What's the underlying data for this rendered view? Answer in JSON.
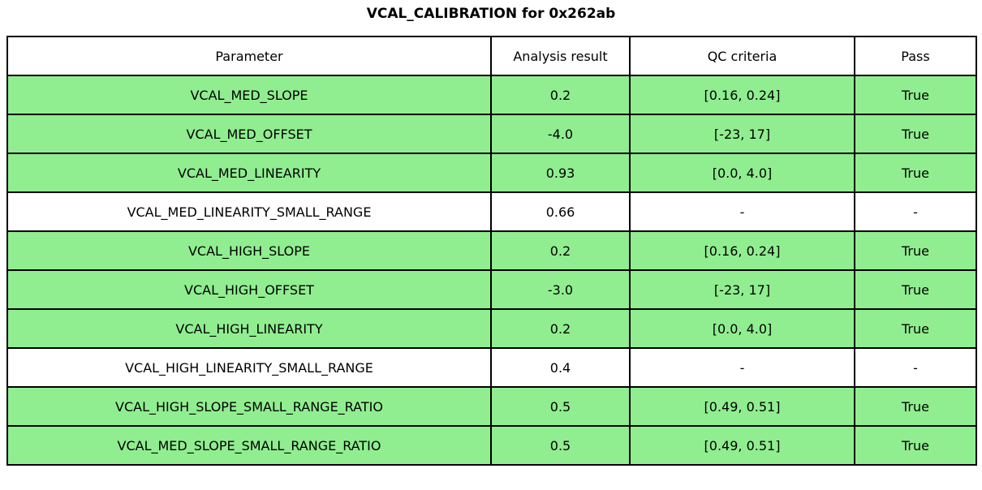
{
  "title": "VCAL_CALIBRATION for 0x262ab",
  "colors": {
    "row_pass_bg": "#90EE90",
    "row_neutral_bg": "#FFFFFF",
    "border": "#000000",
    "text": "#000000"
  },
  "table": {
    "headers": [
      "Parameter",
      "Analysis result",
      "QC criteria",
      "Pass"
    ],
    "rows": [
      {
        "parameter": "VCAL_MED_SLOPE",
        "result": "0.2",
        "criteria": "[0.16, 0.24]",
        "pass": "True",
        "highlight": true
      },
      {
        "parameter": "VCAL_MED_OFFSET",
        "result": "-4.0",
        "criteria": "[-23, 17]",
        "pass": "True",
        "highlight": true
      },
      {
        "parameter": "VCAL_MED_LINEARITY",
        "result": "0.93",
        "criteria": "[0.0, 4.0]",
        "pass": "True",
        "highlight": true
      },
      {
        "parameter": "VCAL_MED_LINEARITY_SMALL_RANGE",
        "result": "0.66",
        "criteria": "-",
        "pass": "-",
        "highlight": false
      },
      {
        "parameter": "VCAL_HIGH_SLOPE",
        "result": "0.2",
        "criteria": "[0.16, 0.24]",
        "pass": "True",
        "highlight": true
      },
      {
        "parameter": "VCAL_HIGH_OFFSET",
        "result": "-3.0",
        "criteria": "[-23, 17]",
        "pass": "True",
        "highlight": true
      },
      {
        "parameter": "VCAL_HIGH_LINEARITY",
        "result": "0.2",
        "criteria": "[0.0, 4.0]",
        "pass": "True",
        "highlight": true
      },
      {
        "parameter": "VCAL_HIGH_LINEARITY_SMALL_RANGE",
        "result": "0.4",
        "criteria": "-",
        "pass": "-",
        "highlight": false
      },
      {
        "parameter": "VCAL_HIGH_SLOPE_SMALL_RANGE_RATIO",
        "result": "0.5",
        "criteria": "[0.49, 0.51]",
        "pass": "True",
        "highlight": true
      },
      {
        "parameter": "VCAL_MED_SLOPE_SMALL_RANGE_RATIO",
        "result": "0.5",
        "criteria": "[0.49, 0.51]",
        "pass": "True",
        "highlight": true
      }
    ]
  },
  "chart_data": {
    "type": "table",
    "title": "VCAL_CALIBRATION for 0x262ab",
    "columns": [
      "Parameter",
      "Analysis result",
      "QC criteria",
      "Pass"
    ],
    "rows": [
      [
        "VCAL_MED_SLOPE",
        0.2,
        "[0.16, 0.24]",
        "True"
      ],
      [
        "VCAL_MED_OFFSET",
        -4.0,
        "[-23, 17]",
        "True"
      ],
      [
        "VCAL_MED_LINEARITY",
        0.93,
        "[0.0, 4.0]",
        "True"
      ],
      [
        "VCAL_MED_LINEARITY_SMALL_RANGE",
        0.66,
        "-",
        "-"
      ],
      [
        "VCAL_HIGH_SLOPE",
        0.2,
        "[0.16, 0.24]",
        "True"
      ],
      [
        "VCAL_HIGH_OFFSET",
        -3.0,
        "[-23, 17]",
        "True"
      ],
      [
        "VCAL_HIGH_LINEARITY",
        0.2,
        "[0.0, 4.0]",
        "True"
      ],
      [
        "VCAL_HIGH_LINEARITY_SMALL_RANGE",
        0.4,
        "-",
        "-"
      ],
      [
        "VCAL_HIGH_SLOPE_SMALL_RANGE_RATIO",
        0.5,
        "[0.49, 0.51]",
        "True"
      ],
      [
        "VCAL_MED_SLOPE_SMALL_RANGE_RATIO",
        0.5,
        "[0.49, 0.51]",
        "True"
      ]
    ]
  }
}
